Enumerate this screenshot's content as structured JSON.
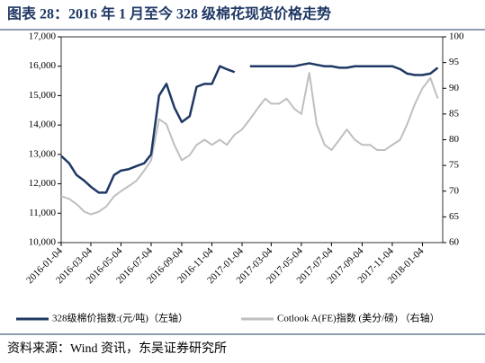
{
  "chart_data": {
    "type": "line",
    "title": "图表 28：2016 年 1 月至今 328 级棉花现货价格走势",
    "source": "资料来源：Wind 资讯，东吴证券研究所",
    "x": [
      "2016-01-04",
      "2016-01-20",
      "2016-02-04",
      "2016-02-20",
      "2016-03-04",
      "2016-03-20",
      "2016-04-04",
      "2016-04-20",
      "2016-05-04",
      "2016-05-20",
      "2016-06-04",
      "2016-06-20",
      "2016-07-04",
      "2016-07-20",
      "2016-08-04",
      "2016-08-20",
      "2016-09-04",
      "2016-09-20",
      "2016-10-04",
      "2016-10-20",
      "2016-11-04",
      "2016-11-20",
      "2016-12-04",
      "2016-12-20",
      "2017-01-04",
      "2017-01-20",
      "2017-02-04",
      "2017-02-20",
      "2017-03-04",
      "2017-03-20",
      "2017-04-04",
      "2017-04-20",
      "2017-05-04",
      "2017-05-20",
      "2017-06-04",
      "2017-06-20",
      "2017-07-04",
      "2017-07-20",
      "2017-08-04",
      "2017-08-20",
      "2017-09-04",
      "2017-09-20",
      "2017-10-04",
      "2017-10-20",
      "2017-11-04",
      "2017-11-20",
      "2017-12-04",
      "2017-12-20",
      "2018-01-04",
      "2018-01-20",
      "2018-02-04"
    ],
    "series": [
      {
        "name": "328级棉价指数:(元/吨)（左轴）",
        "color": "#1f3864",
        "axis": "y",
        "values": [
          12950,
          12700,
          12300,
          12100,
          11900,
          11700,
          11700,
          12300,
          12450,
          12500,
          12600,
          12700,
          13000,
          15000,
          15400,
          14600,
          14100,
          14300,
          15300,
          15400,
          15400,
          16000,
          15900,
          15800,
          null,
          16000,
          16000,
          16000,
          16000,
          16000,
          16000,
          16000,
          16050,
          16100,
          16050,
          16000,
          16000,
          15950,
          15950,
          16000,
          16000,
          16000,
          16000,
          16000,
          16000,
          15900,
          15750,
          15700,
          15700,
          15750,
          15950
        ]
      },
      {
        "name": "Cotlook A(FE)指数 (美分/磅) （右轴）",
        "color": "#bfbfbf",
        "axis": "y2",
        "values": [
          69,
          68.5,
          67.5,
          66,
          65.5,
          66,
          67,
          69,
          70,
          71,
          72,
          74,
          76,
          84,
          83,
          79,
          76,
          77,
          79,
          80,
          79,
          80,
          79,
          81,
          82,
          84,
          86,
          88,
          87,
          87,
          88,
          86,
          85,
          93,
          83,
          79,
          78,
          80,
          82,
          80,
          79,
          79,
          78,
          78,
          79,
          80,
          83,
          87,
          90,
          92,
          88
        ]
      }
    ],
    "xlim": [
      "2016-01-04",
      "2018-02-14"
    ],
    "xticks": [
      "2016-01-04",
      "2016-03-04",
      "2016-05-04",
      "2016-07-04",
      "2016-09-04",
      "2016-11-04",
      "2017-01-04",
      "2017-03-04",
      "2017-05-04",
      "2017-07-04",
      "2017-09-04",
      "2017-11-04",
      "2018-01-04"
    ],
    "ylim": [
      10000,
      17000
    ],
    "yticks": [
      {
        "value": 10000,
        "label": "10,000"
      },
      {
        "value": 11000,
        "label": "11,000"
      },
      {
        "value": 12000,
        "label": "12,000"
      },
      {
        "value": 13000,
        "label": "13,000"
      },
      {
        "value": 14000,
        "label": "14,000"
      },
      {
        "value": 15000,
        "label": "15,000"
      },
      {
        "value": 16000,
        "label": "16,000"
      },
      {
        "value": 17000,
        "label": "17,000"
      }
    ],
    "y2lim": [
      60,
      100
    ],
    "y2ticks": [
      60,
      65,
      70,
      75,
      80,
      85,
      90,
      95,
      100
    ],
    "legend": "bottom"
  }
}
